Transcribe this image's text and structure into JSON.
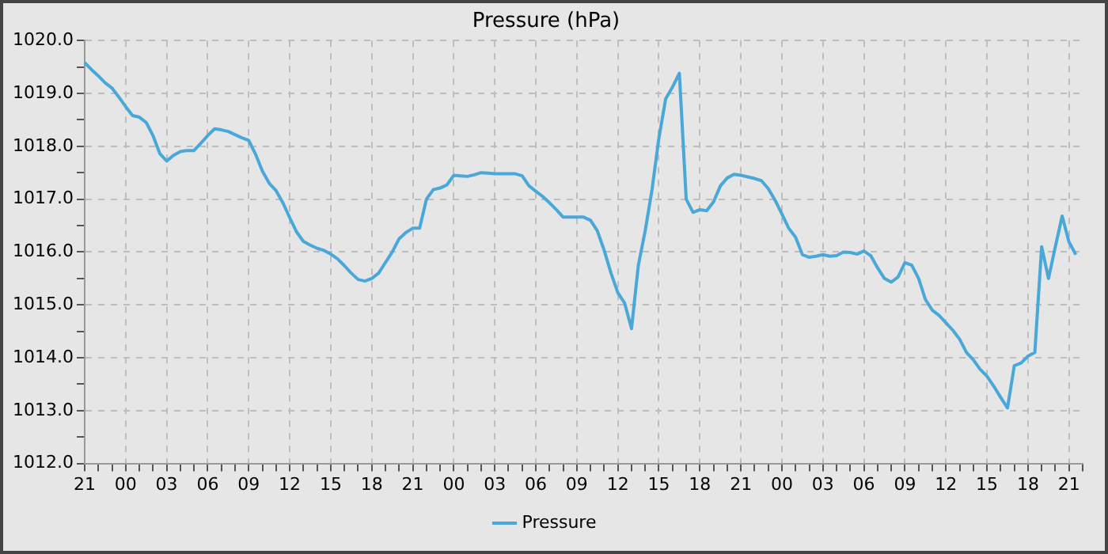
{
  "chart_data": {
    "type": "line",
    "title": "Pressure (hPa)",
    "grid": true,
    "legend": "bottom",
    "marker": "none",
    "line_style": "solid",
    "categories": [
      "21",
      null,
      null,
      null,
      null,
      null,
      "00",
      null,
      null,
      null,
      null,
      null,
      "03",
      null,
      null,
      null,
      null,
      null,
      "06",
      null,
      null,
      null,
      null,
      null,
      "09",
      null,
      null,
      null,
      null,
      null,
      "12",
      null,
      null,
      null,
      null,
      null,
      "15",
      null,
      null,
      null,
      null,
      null,
      "18",
      null,
      null,
      null,
      null,
      null,
      "21",
      null,
      null,
      null,
      null,
      null,
      "00",
      null,
      null,
      null,
      null,
      null,
      "03",
      null,
      null,
      null,
      null,
      null,
      "06",
      null,
      null,
      null,
      null,
      null,
      "09",
      null,
      null,
      null,
      null,
      null,
      "12",
      null,
      null,
      null,
      null,
      null,
      "15",
      null,
      null,
      null,
      null,
      null,
      "18",
      null,
      null,
      null,
      null,
      null,
      "21",
      null,
      null,
      null,
      null,
      null,
      "00",
      null,
      null,
      null,
      null,
      null,
      "03",
      null,
      null,
      null,
      null,
      null,
      "06",
      null,
      null,
      null,
      null,
      null,
      "09",
      null,
      null,
      null,
      null,
      null,
      "12",
      null,
      null,
      null,
      null,
      null,
      "15",
      null,
      null,
      null,
      null,
      null,
      "18",
      null,
      null,
      null,
      null,
      null,
      "21",
      null,
      null
    ],
    "ylim": [
      1012,
      1020
    ],
    "yticks": [
      {
        "value": 1012,
        "label": "1012.0"
      },
      {
        "value": 1012.5,
        "label": null
      },
      {
        "value": 1013,
        "label": "1013.0"
      },
      {
        "value": 1013.5,
        "label": null
      },
      {
        "value": 1014,
        "label": "1014.0"
      },
      {
        "value": 1014.5,
        "label": null
      },
      {
        "value": 1015,
        "label": "1015.0"
      },
      {
        "value": 1015.5,
        "label": null
      },
      {
        "value": 1016,
        "label": "1016.0"
      },
      {
        "value": 1016.5,
        "label": null
      },
      {
        "value": 1017,
        "label": "1017.0"
      },
      {
        "value": 1017.5,
        "label": null
      },
      {
        "value": 1018,
        "label": "1018.0"
      },
      {
        "value": 1018.5,
        "label": null
      },
      {
        "value": 1019,
        "label": "1019.0"
      },
      {
        "value": 1019.5,
        "label": null
      },
      {
        "value": 1020,
        "label": "1020.0"
      }
    ],
    "series": [
      {
        "name": "Pressure",
        "color": "#4aa8d8",
        "values": [
          1019.58,
          1019.45,
          1019.33,
          1019.2,
          1019.1,
          1018.93,
          1018.75,
          1018.58,
          1018.55,
          1018.45,
          1018.2,
          1017.86,
          1017.72,
          1017.83,
          1017.9,
          1017.92,
          1017.92,
          1018.06,
          1018.2,
          1018.33,
          1018.31,
          1018.28,
          1018.22,
          1018.16,
          1018.11,
          1017.85,
          1017.53,
          1017.3,
          1017.16,
          1016.93,
          1016.65,
          1016.38,
          1016.2,
          1016.13,
          1016.07,
          1016.03,
          1015.96,
          1015.87,
          1015.74,
          1015.6,
          1015.48,
          1015.45,
          1015.5,
          1015.6,
          1015.8,
          1016.0,
          1016.25,
          1016.37,
          1016.45,
          1016.45,
          1017.0,
          1017.18,
          1017.21,
          1017.27,
          1017.45,
          1017.44,
          1017.43,
          1017.46,
          1017.5,
          1017.49,
          1017.48,
          1017.48,
          1017.48,
          1017.48,
          1017.44,
          1017.25,
          1017.15,
          1017.05,
          1016.93,
          1016.8,
          1016.66,
          1016.66,
          1016.66,
          1016.66,
          1016.6,
          1016.4,
          1016.03,
          1015.6,
          1015.23,
          1015.03,
          1014.55,
          1015.75,
          1016.4,
          1017.18,
          1018.15,
          1018.9,
          1019.12,
          1019.38,
          1017.0,
          1016.75,
          1016.8,
          1016.78,
          1016.95,
          1017.25,
          1017.4,
          1017.47,
          1017.45,
          1017.42,
          1017.39,
          1017.35,
          1017.2,
          1016.98,
          1016.72,
          1016.45,
          1016.28,
          1015.95,
          1015.9,
          1015.92,
          1015.95,
          1015.92,
          1015.93,
          1016.0,
          1015.99,
          1015.96,
          1016.02,
          1015.93,
          1015.7,
          1015.5,
          1015.43,
          1015.53,
          1015.8,
          1015.75,
          1015.5,
          1015.1,
          1014.9,
          1014.8,
          1014.66,
          1014.52,
          1014.35,
          1014.1,
          1013.96,
          1013.78,
          1013.65,
          1013.46,
          1013.25,
          1013.05,
          1013.85,
          1013.9,
          1014.03,
          1014.1,
          1016.1,
          1015.5,
          1016.1,
          1016.68,
          1016.19,
          1015.95,
          null
        ]
      }
    ]
  }
}
